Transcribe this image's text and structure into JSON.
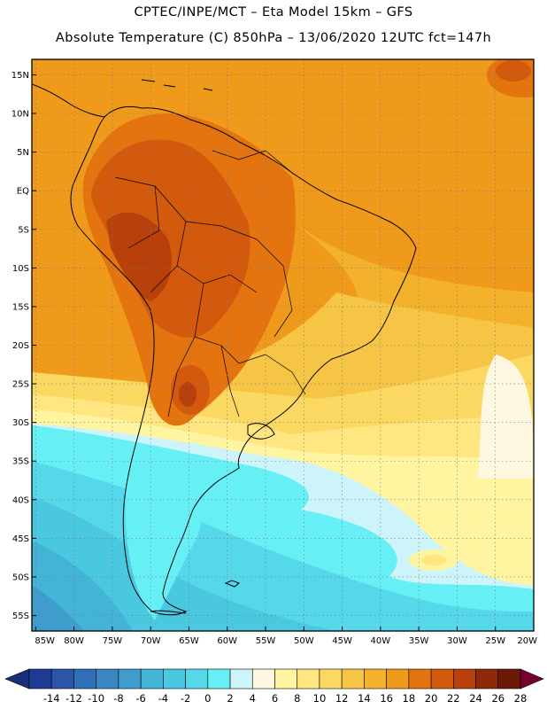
{
  "titles": {
    "line1": "CPTEC/INPE/MCT –  Eta Model 15km – GFS",
    "line2": "Absolute Temperature (C) 850hPa – 13/06/2020 12UTC fct=147h"
  },
  "map": {
    "region": "South America",
    "lat_labels": [
      "15N",
      "10N",
      "5N",
      "EQ",
      "5S",
      "10S",
      "15S",
      "20S",
      "25S",
      "30S",
      "35S",
      "40S",
      "45S",
      "50S",
      "55S"
    ],
    "lat_values": [
      15,
      10,
      5,
      0,
      -5,
      -10,
      -15,
      -20,
      -25,
      -30,
      -35,
      -40,
      -45,
      -50,
      -55
    ],
    "lon_labels": [
      "85W",
      "80W",
      "75W",
      "70W",
      "65W",
      "60W",
      "55W",
      "50W",
      "45W",
      "40W",
      "35W",
      "30W",
      "25W",
      "20W"
    ],
    "lon_values": [
      -85,
      -80,
      -75,
      -70,
      -65,
      -60,
      -55,
      -50,
      -45,
      -40,
      -35,
      -30,
      -25,
      -20
    ],
    "lat_range": [
      -57,
      17
    ],
    "lon_range": [
      -85.5,
      -20
    ],
    "grid": true
  },
  "colorbar": {
    "ticks": [
      "-14",
      "-12",
      "-10",
      "-8",
      "-6",
      "-4",
      "-2",
      "0",
      "2",
      "4",
      "6",
      "8",
      "10",
      "12",
      "14",
      "16",
      "18",
      "20",
      "22",
      "24",
      "26",
      "28"
    ],
    "colors": [
      "#1f3a93",
      "#2a55a8",
      "#2e6fb7",
      "#3a86c2",
      "#3e9dcc",
      "#43b3d6",
      "#4ac8e0",
      "#55d8ea",
      "#66f0f5",
      "#cdf4fb",
      "#fff8e0",
      "#fff4a0",
      "#ffe680",
      "#fbd862",
      "#f7c545",
      "#f4b22c",
      "#f09a1c",
      "#e47410",
      "#d35a0c",
      "#b8400a",
      "#8f2a08",
      "#6a1a06"
    ],
    "low_color": "#1a2f7a",
    "high_color": "#7a0030"
  }
}
